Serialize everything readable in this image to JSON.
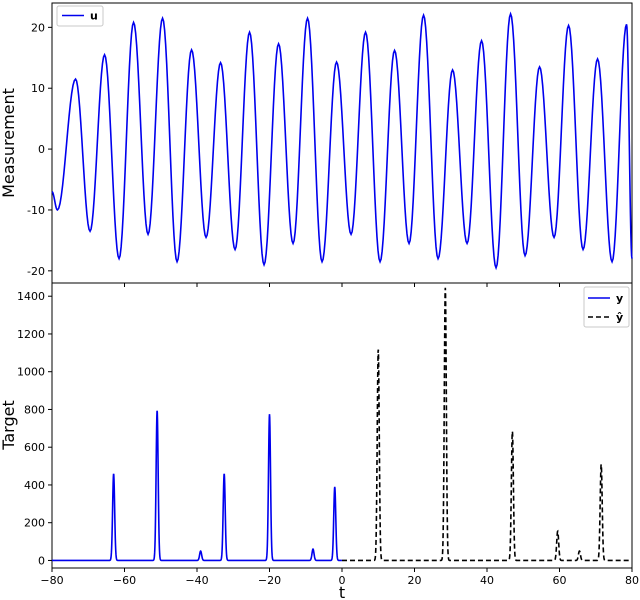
{
  "chart_data": [
    {
      "type": "line",
      "title": "",
      "xlabel": "",
      "ylabel": "Measurement",
      "xlim": [
        -80,
        80
      ],
      "ylim": [
        -22,
        24
      ],
      "xticks": [
        -80,
        -60,
        -40,
        -20,
        0,
        20,
        40,
        60,
        80
      ],
      "yticks": [
        -20,
        -10,
        0,
        10,
        20
      ],
      "grid": false,
      "legend": "top-left",
      "series": [
        {
          "name": "u",
          "color": "#0000ee",
          "style": "solid",
          "extrema": [
            [
              -80,
              -7
            ],
            [
              -78.5,
              -10
            ],
            [
              -73.5,
              11.5
            ],
            [
              -69.5,
              -13.5
            ],
            [
              -65.5,
              15.5
            ],
            [
              -61.5,
              -18
            ],
            [
              -57.5,
              20.8
            ],
            [
              -53.5,
              -14
            ],
            [
              -49.5,
              21.5
            ],
            [
              -45.5,
              -18.5
            ],
            [
              -41.5,
              16.3
            ],
            [
              -37.5,
              -14.5
            ],
            [
              -33.5,
              14.2
            ],
            [
              -29.5,
              -16.5
            ],
            [
              -25.5,
              19.2
            ],
            [
              -21.5,
              -19
            ],
            [
              -17.5,
              17.3
            ],
            [
              -13.5,
              -15.5
            ],
            [
              -9.5,
              21.5
            ],
            [
              -5.5,
              -18.5
            ],
            [
              -1.5,
              14.3
            ],
            [
              2.5,
              -14
            ],
            [
              6.5,
              19.2
            ],
            [
              10.5,
              -18.5
            ],
            [
              14.5,
              16.2
            ],
            [
              18.5,
              -15.5
            ],
            [
              22.5,
              22
            ],
            [
              26.5,
              -18
            ],
            [
              30.5,
              13
            ],
            [
              34.5,
              -15.5
            ],
            [
              38.5,
              17.8
            ],
            [
              42.5,
              -19.5
            ],
            [
              46.5,
              22.2
            ],
            [
              50.5,
              -17.5
            ],
            [
              54.5,
              13.5
            ],
            [
              58.5,
              -14.5
            ],
            [
              62.5,
              20.3
            ],
            [
              66.5,
              -16.5
            ],
            [
              70.5,
              14.8
            ],
            [
              74.5,
              -18.5
            ],
            [
              78.5,
              20.5
            ],
            [
              80,
              -18
            ]
          ]
        }
      ]
    },
    {
      "type": "line",
      "title": "",
      "xlabel": "t",
      "ylabel": "Target",
      "xlim": [
        -80,
        80
      ],
      "ylim": [
        -40,
        1470
      ],
      "xticks": [
        -80,
        -60,
        -40,
        -20,
        0,
        20,
        40,
        60,
        80
      ],
      "yticks": [
        0,
        200,
        400,
        600,
        800,
        1000,
        1200,
        1400
      ],
      "grid": false,
      "legend": "top-right",
      "series": [
        {
          "name": "y",
          "color": "#0000ee",
          "style": "solid",
          "x_range": [
            -80,
            0
          ],
          "peaks": [
            [
              -63,
              460
            ],
            [
              -51,
              795
            ],
            [
              -39,
              50
            ],
            [
              -32.5,
              460
            ],
            [
              -20,
              775
            ],
            [
              -8,
              60
            ],
            [
              -2,
              390
            ]
          ]
        },
        {
          "name": "ŷ",
          "color": "#000000",
          "style": "dashed",
          "x_range": [
            0,
            80
          ],
          "peaks": [
            [
              10,
              1120
            ],
            [
              28.5,
              1445
            ],
            [
              47,
              685
            ],
            [
              59.5,
              155
            ],
            [
              65.5,
              50
            ],
            [
              71.5,
              510
            ]
          ]
        }
      ]
    }
  ]
}
